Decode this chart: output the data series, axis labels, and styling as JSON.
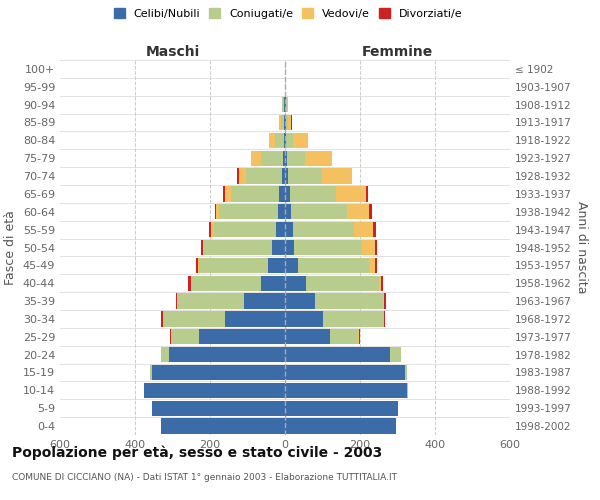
{
  "age_groups": [
    "0-4",
    "5-9",
    "10-14",
    "15-19",
    "20-24",
    "25-29",
    "30-34",
    "35-39",
    "40-44",
    "45-49",
    "50-54",
    "55-59",
    "60-64",
    "65-69",
    "70-74",
    "75-79",
    "80-84",
    "85-89",
    "90-94",
    "95-99",
    "100+"
  ],
  "birth_years": [
    "1998-2002",
    "1993-1997",
    "1988-1992",
    "1983-1987",
    "1978-1982",
    "1973-1977",
    "1968-1972",
    "1963-1967",
    "1958-1962",
    "1953-1957",
    "1948-1952",
    "1943-1947",
    "1938-1942",
    "1933-1937",
    "1928-1932",
    "1923-1927",
    "1918-1922",
    "1913-1917",
    "1908-1912",
    "1903-1907",
    "≤ 1902"
  ],
  "maschi": {
    "celibi": [
      330,
      355,
      375,
      355,
      310,
      230,
      160,
      110,
      65,
      45,
      35,
      25,
      20,
      15,
      8,
      5,
      3,
      3,
      2,
      0,
      0
    ],
    "coniugati": [
      0,
      0,
      2,
      5,
      20,
      75,
      165,
      175,
      185,
      185,
      180,
      165,
      155,
      130,
      95,
      60,
      25,
      8,
      5,
      0,
      0
    ],
    "vedovi": [
      0,
      0,
      0,
      0,
      0,
      0,
      0,
      2,
      2,
      3,
      5,
      8,
      10,
      15,
      20,
      25,
      15,
      5,
      2,
      0,
      0
    ],
    "divorziati": [
      0,
      0,
      0,
      0,
      0,
      2,
      5,
      5,
      8,
      5,
      5,
      5,
      3,
      5,
      5,
      0,
      0,
      0,
      0,
      0,
      0
    ]
  },
  "femmine": {
    "nubili": [
      295,
      300,
      325,
      320,
      280,
      120,
      100,
      80,
      55,
      35,
      25,
      20,
      15,
      12,
      8,
      4,
      2,
      2,
      2,
      0,
      0
    ],
    "coniugate": [
      0,
      0,
      2,
      5,
      30,
      75,
      165,
      180,
      195,
      190,
      180,
      165,
      150,
      125,
      90,
      50,
      18,
      5,
      3,
      0,
      0
    ],
    "vedove": [
      0,
      0,
      0,
      0,
      0,
      2,
      0,
      5,
      5,
      15,
      35,
      50,
      60,
      80,
      80,
      70,
      40,
      10,
      2,
      0,
      0
    ],
    "divorziate": [
      0,
      0,
      0,
      0,
      0,
      2,
      2,
      3,
      5,
      5,
      5,
      8,
      8,
      3,
      0,
      0,
      0,
      2,
      0,
      0,
      0
    ]
  },
  "colors": {
    "celibi": "#3b6ca7",
    "coniugati": "#b8cc8e",
    "vedovi": "#f5c060",
    "divorziati": "#cc2222"
  },
  "xlim": 600,
  "title": "Popolazione per età, sesso e stato civile - 2003",
  "subtitle": "COMUNE DI CICCIANO (NA) - Dati ISTAT 1° gennaio 2003 - Elaborazione TUTTITALIA.IT",
  "ylabel_left": "Fasce di età",
  "ylabel_right": "Anni di nascita",
  "legend_labels": [
    "Celibi/Nubili",
    "Coniugati/e",
    "Vedovi/e",
    "Divorziati/e"
  ]
}
